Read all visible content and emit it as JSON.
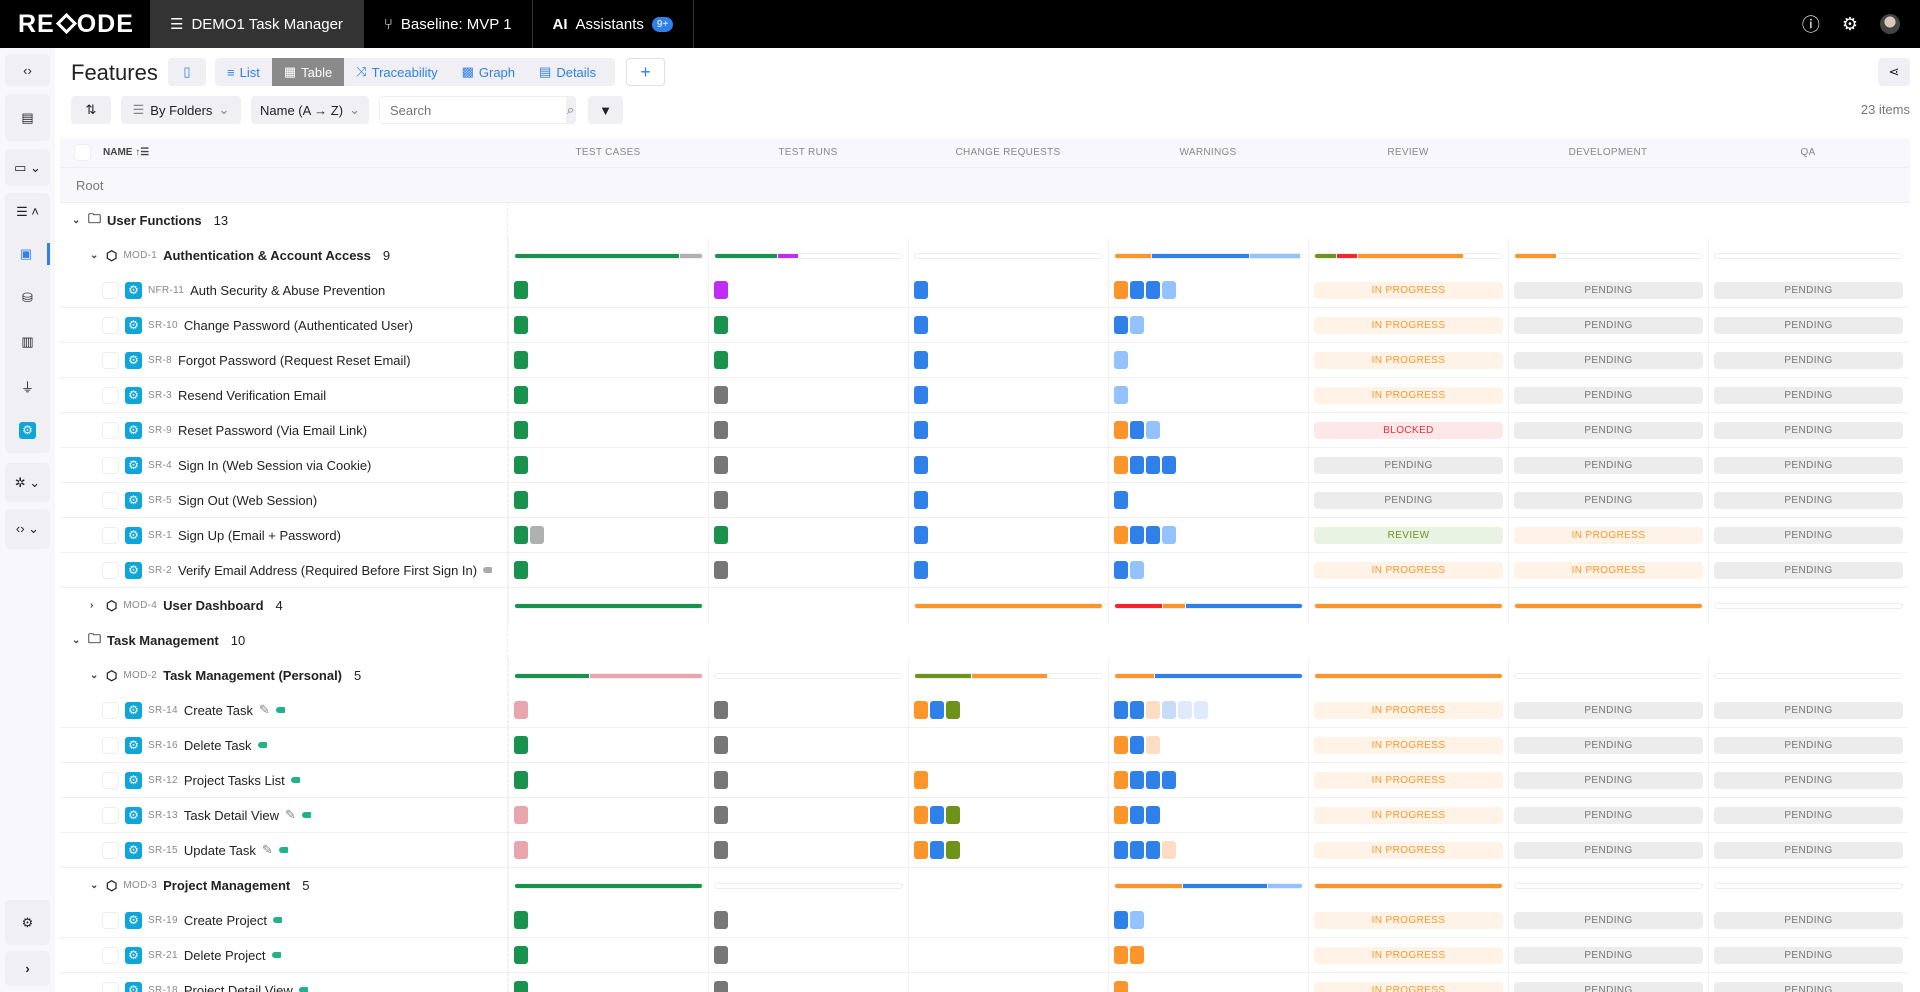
{
  "topbar": {
    "logo": "RECODE",
    "tabs": [
      {
        "label": "DEMO1 Task Manager",
        "icon": "menu-icon"
      },
      {
        "label": "Baseline: MVP 1",
        "icon": "branch-icon"
      },
      {
        "label": "Assistants",
        "icon": "ai-icon",
        "prefix": "AI",
        "badge": "9+"
      }
    ]
  },
  "toolbar": {
    "title": "Features",
    "views": [
      "List",
      "Table",
      "Traceability",
      "Graph",
      "Details"
    ],
    "active_view": "Table",
    "group_by": "By Folders",
    "sort": "Name (A → Z)",
    "search_placeholder": "Search",
    "item_count": "23 items",
    "add": "+"
  },
  "table": {
    "name_header": "NAME",
    "columns": [
      "TEST CASES",
      "TEST RUNS",
      "CHANGE REQUESTS",
      "WARNINGS",
      "REVIEW",
      "DEVELOPMENT",
      "QA"
    ],
    "root_label": "Root"
  },
  "colors": {
    "green": "#18924c",
    "gray": "#777777",
    "lightgray": "#b0b0b0",
    "purple": "#c02cf5",
    "blue": "#2f80e8",
    "lightblue": "#94c2fc",
    "orange": "#fd962a",
    "olive": "#6f921a",
    "red": "#f5252f",
    "pink": "#e8a5ae",
    "peach": "#fddec5",
    "paleblue": "#c7dcf8",
    "faintblue": "#dfeafc",
    "tag_teal": "#20b38a",
    "tag_gray": "#aaaaaa"
  },
  "statuses": {
    "IN PROGRESS": {
      "bg": "#fff3e8",
      "fg": "#fd962a"
    },
    "PENDING": {
      "bg": "#ececec",
      "fg": "#777777"
    },
    "BLOCKED": {
      "bg": "#fde8e9",
      "fg": "#f0303a"
    },
    "REVIEW": {
      "bg": "#e9f3e4",
      "fg": "#6f921a"
    }
  },
  "rows": [
    {
      "type": "folder",
      "name": "User Functions",
      "count": "13"
    },
    {
      "type": "module",
      "id": "MOD-1",
      "name": "Authentication & Account Access",
      "count": "9",
      "expanded": true,
      "bars": [
        [
          [
            "green",
            88
          ],
          [
            "lightgray",
            12
          ]
        ],
        [
          [
            "green",
            33
          ],
          [
            "purple",
            11
          ]
        ],
        [],
        [
          [
            "orange",
            19
          ],
          [
            "blue",
            52
          ],
          [
            "lightblue",
            27
          ]
        ],
        [
          [
            "olive",
            11
          ],
          [
            "red",
            11
          ],
          [
            "orange",
            56
          ]
        ],
        [
          [
            "orange",
            22
          ]
        ],
        []
      ]
    },
    {
      "type": "item",
      "id": "NFR-11",
      "name": "Auth Security & Abuse Prevention",
      "tc": [
        "green"
      ],
      "tr": [
        "purple"
      ],
      "cr": [
        "blue"
      ],
      "warn": [
        "orange",
        "blue",
        "blue",
        "lightblue"
      ],
      "status": [
        "IN PROGRESS",
        "PENDING",
        "PENDING"
      ]
    },
    {
      "type": "item",
      "id": "SR-10",
      "name": "Change Password (Authenticated User)",
      "tc": [
        "green"
      ],
      "tr": [
        "green"
      ],
      "cr": [
        "blue"
      ],
      "warn": [
        "blue",
        "lightblue"
      ],
      "status": [
        "IN PROGRESS",
        "PENDING",
        "PENDING"
      ]
    },
    {
      "type": "item",
      "id": "SR-8",
      "name": "Forgot Password (Request Reset Email)",
      "tc": [
        "green"
      ],
      "tr": [
        "green"
      ],
      "cr": [
        "blue"
      ],
      "warn": [
        "lightblue"
      ],
      "status": [
        "IN PROGRESS",
        "PENDING",
        "PENDING"
      ]
    },
    {
      "type": "item",
      "id": "SR-3",
      "name": "Resend Verification Email",
      "tc": [
        "green"
      ],
      "tr": [
        "gray"
      ],
      "cr": [
        "blue"
      ],
      "warn": [
        "lightblue"
      ],
      "status": [
        "IN PROGRESS",
        "PENDING",
        "PENDING"
      ]
    },
    {
      "type": "item",
      "id": "SR-9",
      "name": "Reset Password (Via Email Link)",
      "tc": [
        "green"
      ],
      "tr": [
        "gray"
      ],
      "cr": [
        "blue"
      ],
      "warn": [
        "orange",
        "blue",
        "lightblue"
      ],
      "status": [
        "BLOCKED",
        "PENDING",
        "PENDING"
      ]
    },
    {
      "type": "item",
      "id": "SR-4",
      "name": "Sign In (Web Session via Cookie)",
      "tc": [
        "green"
      ],
      "tr": [
        "gray"
      ],
      "cr": [
        "blue"
      ],
      "warn": [
        "orange",
        "blue",
        "blue",
        "blue"
      ],
      "status": [
        "PENDING",
        "PENDING",
        "PENDING"
      ]
    },
    {
      "type": "item",
      "id": "SR-5",
      "name": "Sign Out (Web Session)",
      "tc": [
        "green"
      ],
      "tr": [
        "gray"
      ],
      "cr": [
        "blue"
      ],
      "warn": [
        "blue"
      ],
      "status": [
        "PENDING",
        "PENDING",
        "PENDING"
      ]
    },
    {
      "type": "item",
      "id": "SR-1",
      "name": "Sign Up (Email + Password)",
      "tc": [
        "green",
        "lightgray"
      ],
      "tr": [
        "green"
      ],
      "cr": [
        "blue"
      ],
      "warn": [
        "orange",
        "blue",
        "blue",
        "lightblue"
      ],
      "status": [
        "REVIEW",
        "IN PROGRESS",
        "PENDING"
      ]
    },
    {
      "type": "item",
      "id": "SR-2",
      "name": "Verify Email Address (Required Before First Sign In)",
      "tag": "tag_gray",
      "tc": [
        "green"
      ],
      "tr": [
        "gray"
      ],
      "cr": [
        "blue"
      ],
      "warn": [
        "blue",
        "lightblue"
      ],
      "status": [
        "IN PROGRESS",
        "IN PROGRESS",
        "PENDING"
      ]
    },
    {
      "type": "module",
      "id": "MOD-4",
      "name": "User Dashboard",
      "count": "4",
      "expanded": false,
      "bars": [
        [
          [
            "green",
            100
          ]
        ],
        null,
        [
          [
            "orange",
            100
          ]
        ],
        [
          [
            "red",
            25
          ],
          [
            "orange",
            12
          ],
          [
            "blue",
            62
          ]
        ],
        [
          [
            "orange",
            100
          ]
        ],
        [
          [
            "orange",
            100
          ]
        ],
        []
      ]
    },
    {
      "type": "folder",
      "name": "Task Management",
      "count": "10"
    },
    {
      "type": "module",
      "id": "MOD-2",
      "name": "Task Management (Personal)",
      "count": "5",
      "expanded": true,
      "bars": [
        [
          [
            "green",
            40
          ],
          [
            "pink",
            60
          ]
        ],
        [],
        [
          [
            "olive",
            30
          ],
          [
            "orange",
            40
          ]
        ],
        [
          [
            "orange",
            21
          ],
          [
            "blue",
            79
          ]
        ],
        [
          [
            "orange",
            100
          ]
        ],
        [],
        []
      ]
    },
    {
      "type": "item",
      "id": "SR-14",
      "name": "Create Task",
      "edited": true,
      "tag": "tag_teal",
      "tc": [
        "pink"
      ],
      "tr": [
        "gray"
      ],
      "cr": [
        "orange",
        "blue",
        "olive"
      ],
      "warn": [
        "blue",
        "blue",
        "peach",
        "paleblue",
        "faintblue",
        "faintblue"
      ],
      "status": [
        "IN PROGRESS",
        "PENDING",
        "PENDING"
      ]
    },
    {
      "type": "item",
      "id": "SR-16",
      "name": "Delete Task",
      "tag": "tag_teal",
      "tc": [
        "green"
      ],
      "tr": [
        "gray"
      ],
      "cr": [],
      "warn": [
        "orange",
        "blue",
        "peach"
      ],
      "status": [
        "IN PROGRESS",
        "PENDING",
        "PENDING"
      ]
    },
    {
      "type": "item",
      "id": "SR-12",
      "name": "Project Tasks List",
      "tag": "tag_teal",
      "tc": [
        "green"
      ],
      "tr": [
        "gray"
      ],
      "cr": [
        "orange"
      ],
      "warn": [
        "orange",
        "blue",
        "blue",
        "blue"
      ],
      "status": [
        "IN PROGRESS",
        "PENDING",
        "PENDING"
      ]
    },
    {
      "type": "item",
      "id": "SR-13",
      "name": "Task Detail View",
      "edited": true,
      "tag": "tag_teal",
      "tc": [
        "pink"
      ],
      "tr": [
        "gray"
      ],
      "cr": [
        "orange",
        "blue",
        "olive"
      ],
      "warn": [
        "orange",
        "blue",
        "blue"
      ],
      "status": [
        "IN PROGRESS",
        "PENDING",
        "PENDING"
      ]
    },
    {
      "type": "item",
      "id": "SR-15",
      "name": "Update Task",
      "edited": true,
      "tag": "tag_teal",
      "tc": [
        "pink"
      ],
      "tr": [
        "gray"
      ],
      "cr": [
        "orange",
        "blue",
        "olive"
      ],
      "warn": [
        "blue",
        "blue",
        "blue",
        "peach"
      ],
      "status": [
        "IN PROGRESS",
        "PENDING",
        "PENDING"
      ]
    },
    {
      "type": "module",
      "id": "MOD-3",
      "name": "Project Management",
      "count": "5",
      "expanded": true,
      "bars": [
        [
          [
            "green",
            100
          ]
        ],
        [],
        null,
        [
          [
            "orange",
            36
          ],
          [
            "blue",
            45
          ],
          [
            "lightblue",
            18
          ]
        ],
        [
          [
            "orange",
            100
          ]
        ],
        [],
        []
      ]
    },
    {
      "type": "item",
      "id": "SR-19",
      "name": "Create Project",
      "tag": "tag_teal",
      "tc": [
        "green"
      ],
      "tr": [
        "gray"
      ],
      "cr": [],
      "warn": [
        "blue",
        "lightblue"
      ],
      "status": [
        "IN PROGRESS",
        "PENDING",
        "PENDING"
      ]
    },
    {
      "type": "item",
      "id": "SR-21",
      "name": "Delete Project",
      "tag": "tag_teal",
      "tc": [
        "green"
      ],
      "tr": [
        "gray"
      ],
      "cr": [],
      "warn": [
        "orange",
        "orange"
      ],
      "status": [
        "IN PROGRESS",
        "PENDING",
        "PENDING"
      ]
    },
    {
      "type": "item",
      "id": "SR-18",
      "name": "Project Detail View",
      "tag": "tag_teal",
      "tc": [
        "green"
      ],
      "tr": [
        "gray"
      ],
      "cr": [],
      "warn": [
        "orange"
      ],
      "status": [
        "IN PROGRESS",
        "PENDING",
        "PENDING"
      ]
    }
  ]
}
